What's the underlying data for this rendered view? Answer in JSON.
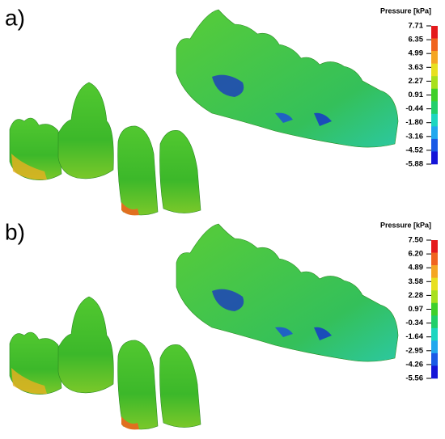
{
  "panels": [
    {
      "label": "a)",
      "legend": {
        "title": "Pressure [kPa]",
        "ticks": [
          "7.71",
          "6.35",
          "4.99",
          "3.63",
          "2.27",
          "0.91",
          "-0.44",
          "-1.80",
          "-3.16",
          "-4.52",
          "-5.88"
        ]
      }
    },
    {
      "label": "b)",
      "legend": {
        "title": "Pressure [kPa]",
        "ticks": [
          "7.50",
          "6.20",
          "4.89",
          "3.58",
          "2.28",
          "0.97",
          "-0.34",
          "-1.64",
          "-2.95",
          "-4.26",
          "-5.56"
        ]
      }
    }
  ],
  "colorbar_colors": [
    "#e41a1c",
    "#f0641e",
    "#f5a623",
    "#e8e020",
    "#a8e01e",
    "#3fd02a",
    "#22cf6a",
    "#1ed6c0",
    "#22a8ee",
    "#1a5ae6",
    "#1414d8"
  ]
}
